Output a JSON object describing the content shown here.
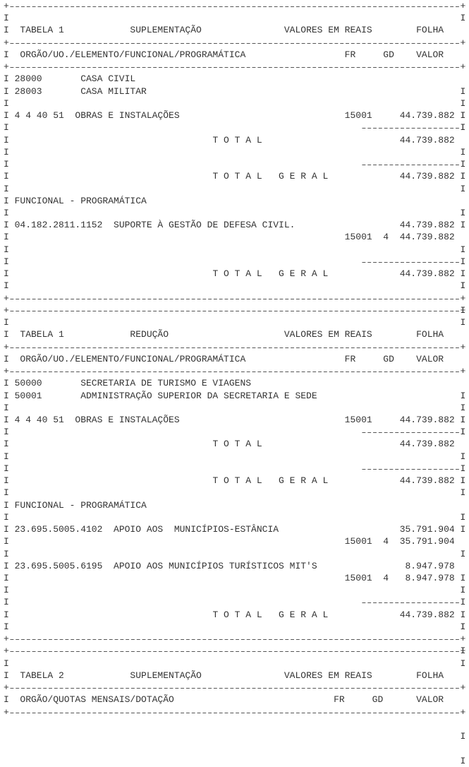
{
  "tables": [
    {
      "header": {
        "table": "TABELA 1",
        "type": "SUPLEMENTAÇÃO",
        "units": "VALORES EM REAIS",
        "page": "FOLHA"
      },
      "columns": {
        "desc": "ORGÃO/UO./ELEMENTO/FUNCIONAL/PROGRAMÁTICA",
        "fr": "FR",
        "gd": "GD",
        "valor": "VALOR"
      },
      "orgaos": [
        {
          "code": "28000",
          "name": "CASA CIVIL"
        },
        {
          "code": "28003",
          "name": "CASA MILITAR"
        }
      ],
      "elemento": {
        "code": "4 4 40 51",
        "name": "OBRAS E INSTALAÇÕES",
        "fr": "15001",
        "valor": "44.739.882"
      },
      "total_label": "T O T A L",
      "total": "44.739.882",
      "total_geral_label": "T O T A L   G E R A L",
      "total_geral": "44.739.882",
      "funcional_title": "FUNCIONAL - PROGRAMÁTICA",
      "funcionais": [
        {
          "code": "04.182.2811.1152",
          "name": "SUPORTE À GESTÃO DE DEFESA CIVIL.",
          "valor": "44.739.882",
          "fr": "15001",
          "gd": "4",
          "fr_valor": "44.739.882"
        }
      ],
      "funcional_total_geral": "44.739.882"
    },
    {
      "header": {
        "table": "TABELA 1",
        "type": "REDUÇÃO",
        "units": "VALORES EM REAIS",
        "page": "FOLHA"
      },
      "columns": {
        "desc": "ORGÃO/UO./ELEMENTO/FUNCIONAL/PROGRAMÁTICA",
        "fr": "FR",
        "gd": "GD",
        "valor": "VALOR"
      },
      "orgaos": [
        {
          "code": "50000",
          "name": "SECRETARIA DE TURISMO E VIAGENS"
        },
        {
          "code": "50001",
          "name": "ADMINISTRAÇÃO SUPERIOR DA SECRETARIA E SEDE"
        }
      ],
      "elemento": {
        "code": "4 4 40 51",
        "name": "OBRAS E INSTALAÇÕES",
        "fr": "15001",
        "valor": "44.739.882"
      },
      "total_label": "T O T A L",
      "total": "44.739.882",
      "total_geral_label": "T O T A L   G E R A L",
      "total_geral": "44.739.882",
      "funcional_title": "FUNCIONAL - PROGRAMÁTICA",
      "funcionais": [
        {
          "code": "23.695.5005.4102",
          "name": "APOIO AOS  MUNICÍPIOS-ESTÂNCIA",
          "valor": "35.791.904",
          "fr": "15001",
          "gd": "4",
          "fr_valor": "35.791.904"
        },
        {
          "code": "23.695.5005.6195",
          "name": "APOIO AOS MUNICÍPIOS TURÍSTICOS MIT'S",
          "valor": "8.947.978",
          "fr": "15001",
          "gd": "4",
          "fr_valor": "8.947.978"
        }
      ],
      "funcional_total_geral": "44.739.882"
    },
    {
      "header": {
        "table": "TABELA 2",
        "type": "SUPLEMENTAÇÃO",
        "units": "VALORES EM REAIS",
        "page": "FOLHA"
      },
      "columns": {
        "desc": "ORGÃO/QUOTAS MENSAIS/DOTAÇÃO",
        "fr": "FR",
        "gd": "GD",
        "valor": "VALOR"
      }
    }
  ]
}
